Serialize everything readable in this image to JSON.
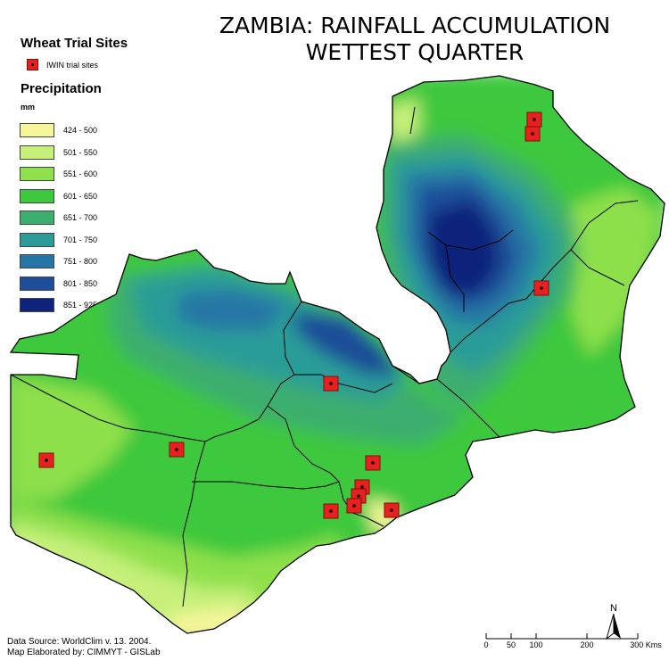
{
  "title": {
    "line1": "ZAMBIA:  RAINFALL ACCUMULATION",
    "line2": "WETTEST QUARTER"
  },
  "legend": {
    "sites_heading": "Wheat Trial Sites",
    "sites_label": "IWIN trial sites",
    "precip_heading": "Precipitation",
    "unit": "mm",
    "classes": [
      {
        "label": "424 - 500",
        "color": "#f5f59a"
      },
      {
        "label": "501 - 550",
        "color": "#c6f07a"
      },
      {
        "label": "551 - 600",
        "color": "#8ee04c"
      },
      {
        "label": "601 - 650",
        "color": "#3ec83e"
      },
      {
        "label": "651 - 700",
        "color": "#3cae6e"
      },
      {
        "label": "701 - 750",
        "color": "#2b9c98"
      },
      {
        "label": "751 - 800",
        "color": "#2576a6"
      },
      {
        "label": "801 - 850",
        "color": "#1f4e98"
      },
      {
        "label": "851 - 925",
        "color": "#10237a"
      }
    ]
  },
  "source": {
    "line1": "Data Source: WorldClim v. 13.  2004.",
    "line2": "Map Elaborated by: CIMMYT - GISLab"
  },
  "north_arrow": {
    "letter": "N"
  },
  "scale_bar": {
    "ticks": [
      "0",
      "50",
      "100",
      "200",
      "300 Kms"
    ]
  },
  "colors": {
    "site_marker": "#e8201e",
    "border": "#000000"
  }
}
